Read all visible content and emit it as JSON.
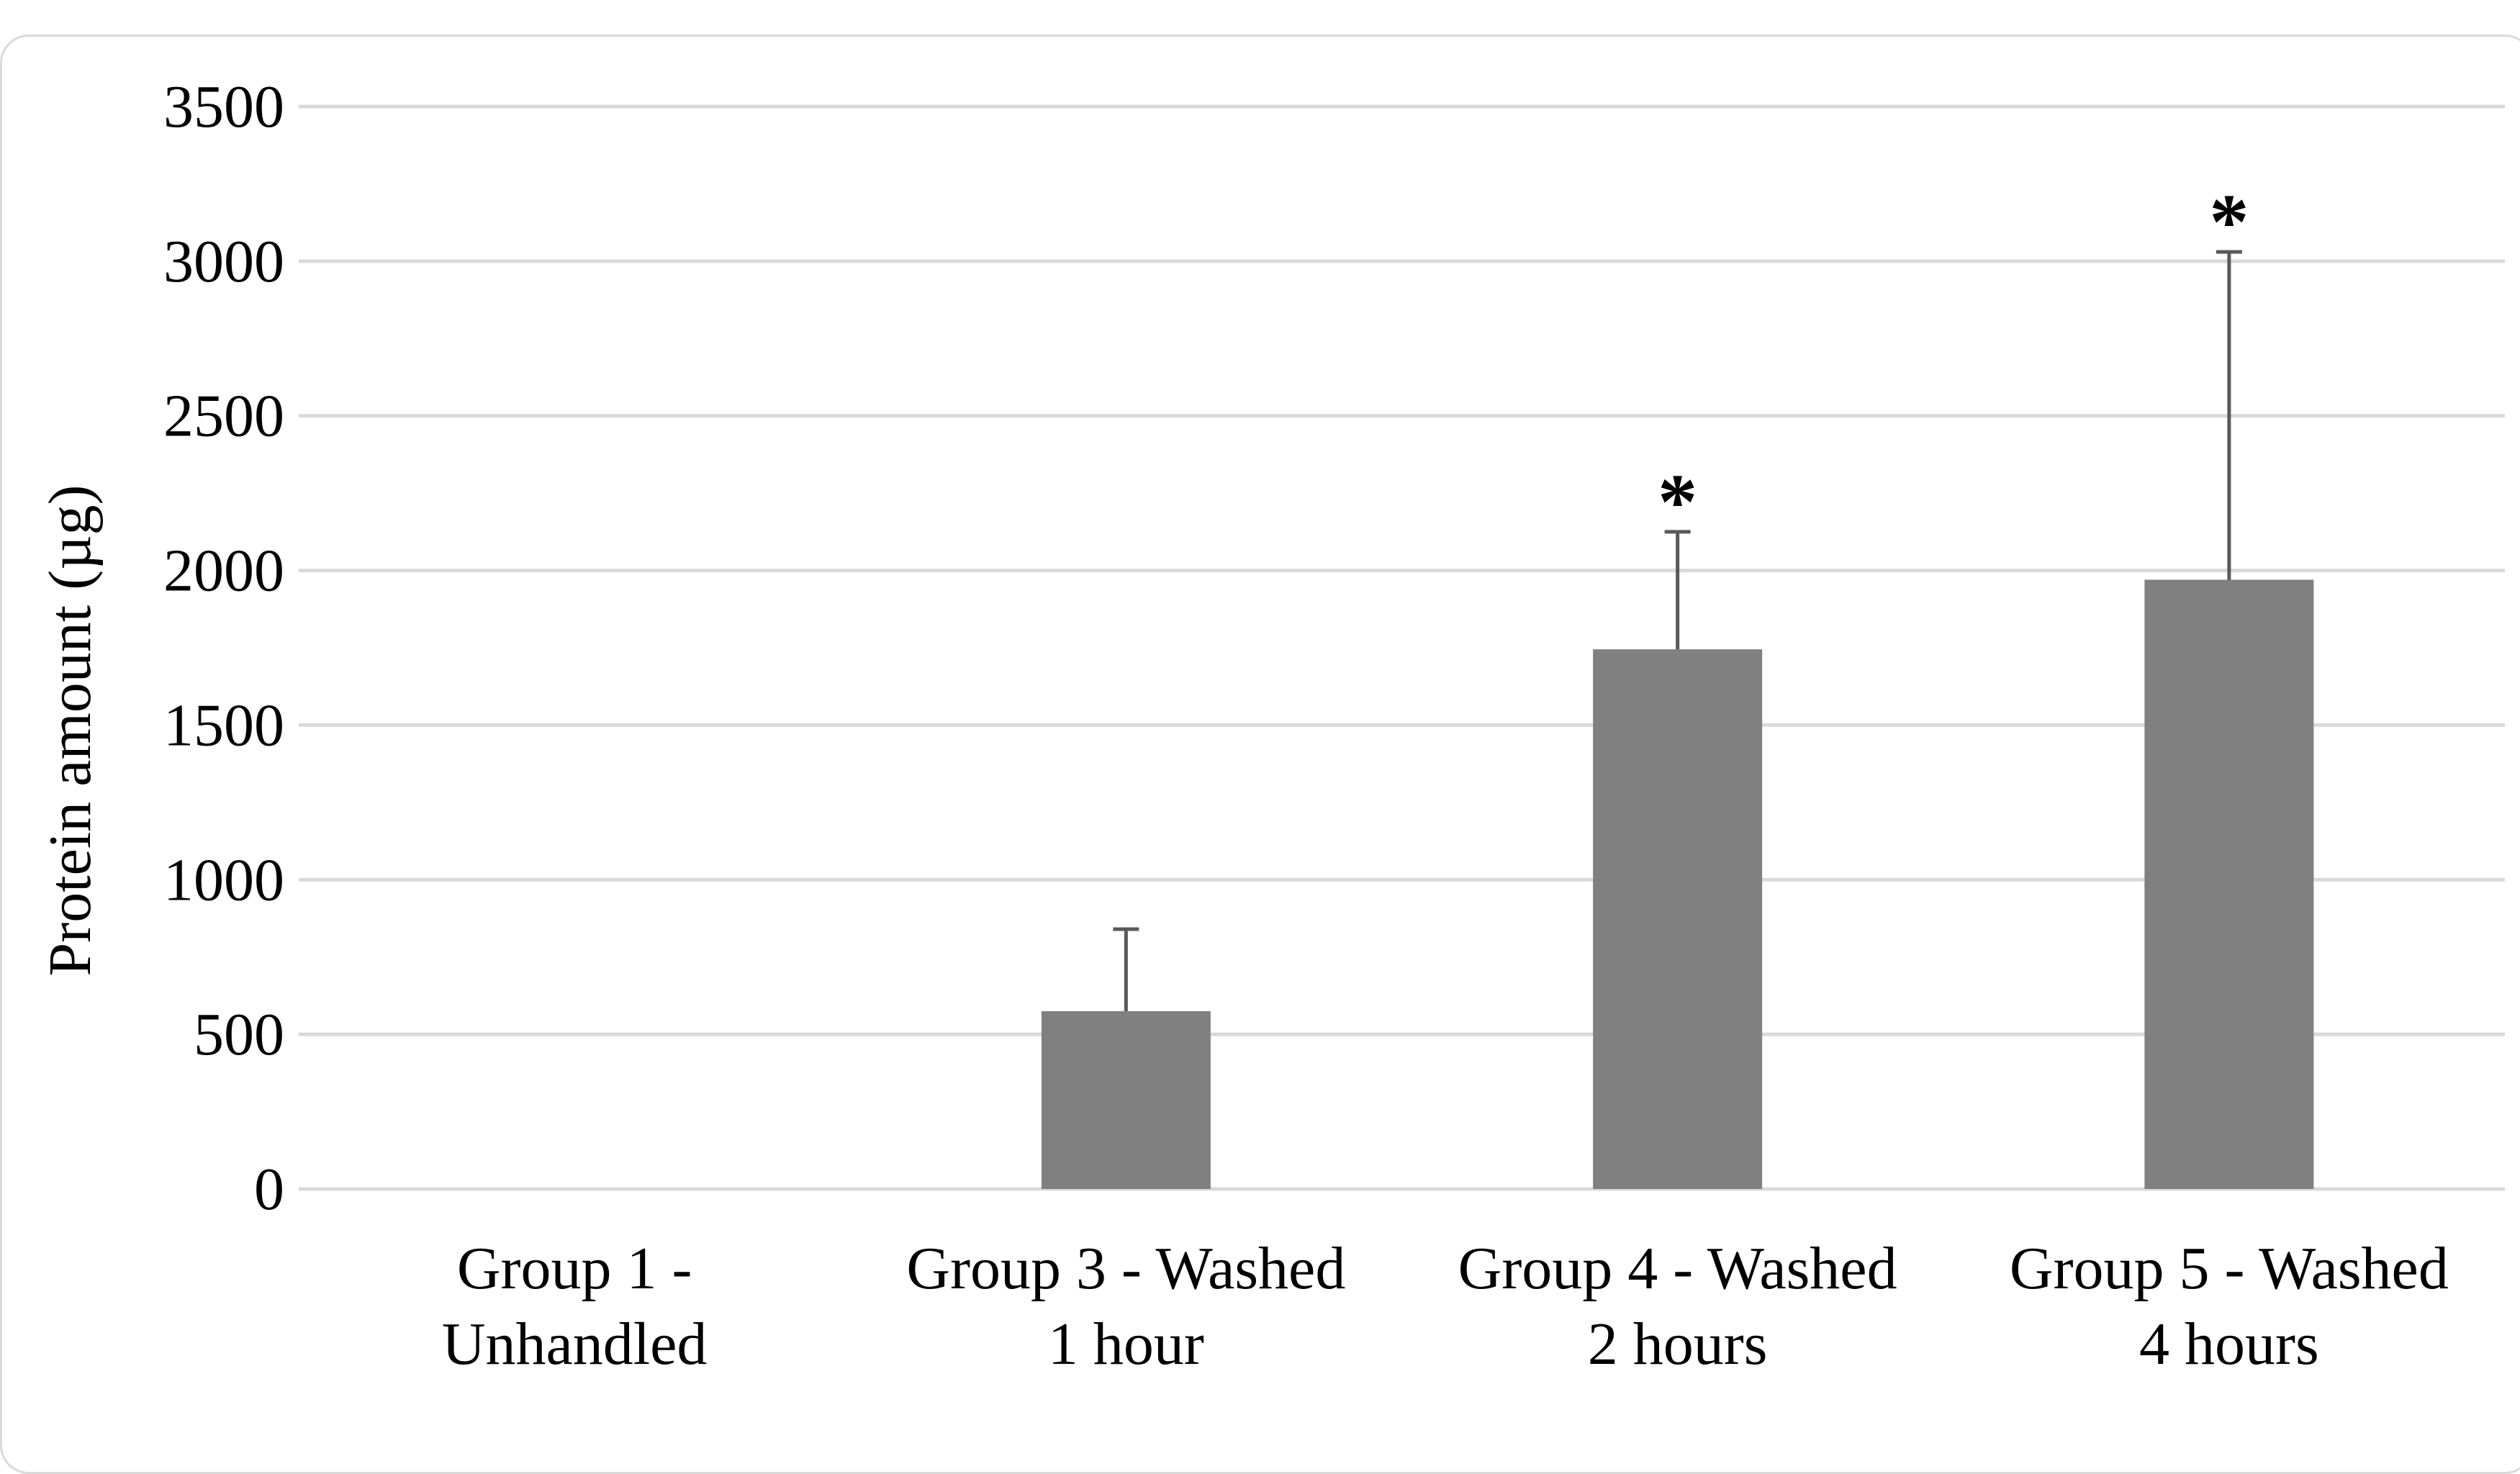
{
  "chart_data": {
    "type": "bar",
    "title": "",
    "xlabel": "",
    "ylabel": "Protein amount (µg)",
    "ylim": [
      0,
      3500
    ],
    "yticks": [
      0,
      500,
      1000,
      1500,
      2000,
      2500,
      3000,
      3500
    ],
    "grid": true,
    "categories": [
      [
        "Group 1 -",
        "Unhandled"
      ],
      [
        "Group 3 - Washed",
        "1 hour"
      ],
      [
        "Group 4 - Washed",
        "2 hours"
      ],
      [
        "Group 5 - Washed",
        "4 hours"
      ]
    ],
    "values": [
      0,
      575,
      1745,
      1970
    ],
    "error_upper": [
      0,
      840,
      2125,
      3030
    ],
    "significance": [
      "",
      "",
      "*",
      "*"
    ]
  },
  "colors": {
    "bar": "#808080",
    "grid": "#d9d9d9",
    "error": "#595959",
    "frame": "#d9d9d9"
  }
}
